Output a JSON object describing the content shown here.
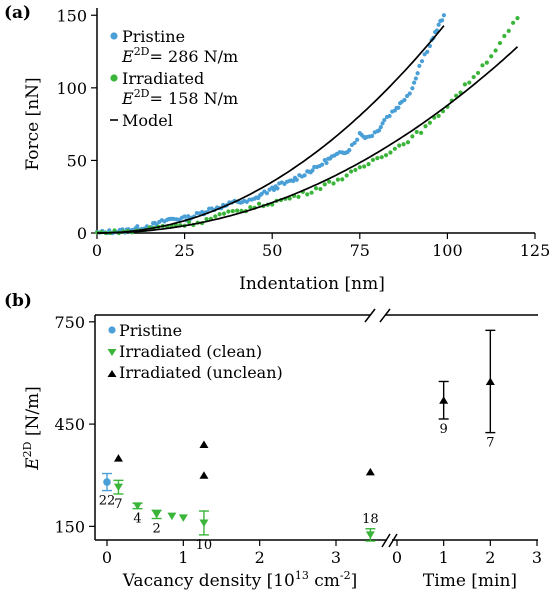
{
  "chart_data": [
    {
      "panel": "(a)",
      "type": "scatter",
      "xlabel": "Indentation [nm]",
      "ylabel": "Force [nN]",
      "xlim": [
        0,
        125
      ],
      "ylim": [
        0,
        155
      ],
      "xticks": [
        "0",
        "25",
        "50",
        "75",
        "100",
        "125"
      ],
      "yticks": [
        "0",
        "50",
        "100",
        "150"
      ],
      "legend_position": "top-left",
      "legend": {
        "pristine": "Pristine",
        "pristine_e": "E",
        "pristine_sup": "2D",
        "pristine_value": "= 286 N/m",
        "irradiated": "Irradiated",
        "irradiated_e": "E",
        "irradiated_sup": "2D",
        "irradiated_value": "= 158 N/m",
        "model": "Model"
      },
      "series": [
        {
          "name": "Pristine",
          "color": "#4a9fd6",
          "marker": "dot",
          "x": [
            0,
            3,
            5,
            8,
            10,
            12,
            15,
            17,
            20,
            22,
            25,
            27,
            30,
            32,
            35,
            37,
            40,
            42,
            45,
            47,
            50,
            52,
            55,
            57,
            60,
            62,
            65,
            67,
            70,
            72,
            75,
            77,
            80,
            82,
            85,
            87,
            90,
            92,
            95,
            97,
            99
          ],
          "y": [
            0,
            0.5,
            1,
            1.5,
            2.5,
            3.5,
            5,
            6,
            9,
            10,
            10,
            11,
            14,
            16,
            18,
            19,
            22,
            21,
            23,
            27,
            30,
            33,
            35,
            38,
            42,
            44,
            49,
            52,
            55,
            58,
            68,
            66,
            70,
            78,
            85,
            90,
            100,
            115,
            130,
            140,
            150
          ]
        },
        {
          "name": "Irradiated",
          "color": "#3ab53a",
          "marker": "dot",
          "x": [
            0,
            5,
            10,
            15,
            20,
            25,
            30,
            35,
            40,
            45,
            50,
            55,
            60,
            65,
            70,
            75,
            80,
            85,
            90,
            95,
            100,
            105,
            110,
            115,
            120
          ],
          "y": [
            0,
            0.5,
            1,
            3,
            5,
            6,
            8,
            12,
            15,
            18,
            21,
            24,
            28,
            33,
            38,
            44,
            52,
            58,
            66,
            75,
            88,
            101,
            115,
            130,
            148
          ]
        },
        {
          "name": "Model",
          "color": "#000000",
          "marker": "line",
          "k": [
            0.01158,
            0.00637
          ],
          "n": [
            2.05,
            2.07
          ],
          "xmax": [
            99,
            120
          ]
        }
      ]
    },
    {
      "panel": "(b)",
      "type": "scatter",
      "ylabel": "E",
      "ylabel_sup": "2D",
      "ylabel_unit": " [N/m]",
      "xlabel_left": "Vacancy density [10",
      "xlabel_left_sup1": "13",
      "xlabel_left_mid": " cm",
      "xlabel_left_sup2": "-2",
      "xlabel_left_end": "]",
      "xlabel_right": "Time [min]",
      "xlim_left": [
        -0.15,
        3.6
      ],
      "xlim_right": [
        -0.15,
        3.0
      ],
      "ylim": [
        110,
        770
      ],
      "xticks_left": [
        "0",
        "1",
        "2",
        "3"
      ],
      "xticks_right": [
        "0",
        "1",
        "2",
        "3"
      ],
      "yticks": [
        "150",
        "450",
        "750"
      ],
      "broken_axis": true,
      "legend_position": "top-left",
      "legend": {
        "pristine": "Pristine",
        "clean": "Irradiated (clean)",
        "unclean": "Irradiated (unclean)"
      },
      "series": [
        {
          "name": "Pristine",
          "color": "#4a9fd6",
          "marker": "dot",
          "points": [
            {
              "x": 0.0,
              "y": 280,
              "err": 25,
              "n": "22"
            }
          ]
        },
        {
          "name": "Irradiated (clean)",
          "color": "#3ab53a",
          "marker": "triangle-down",
          "points": [
            {
              "x": 0.15,
              "y": 265,
              "err": 20,
              "n": "7"
            },
            {
              "x": 0.4,
              "y": 210,
              "err": 8,
              "n": "4"
            },
            {
              "x": 0.65,
              "y": 185,
              "err": 12,
              "n": "2"
            },
            {
              "x": 0.85,
              "y": 180,
              "err": 0,
              "n": ""
            },
            {
              "x": 1.0,
              "y": 175,
              "err": 0,
              "n": ""
            },
            {
              "x": 1.27,
              "y": 160,
              "err": 35,
              "n": "10"
            },
            {
              "x": 3.45,
              "y": 125,
              "err": 18,
              "n": "18"
            }
          ]
        },
        {
          "name": "Irradiated (unclean)",
          "color": "#000000",
          "marker": "triangle-up",
          "points": [
            {
              "x": 0.15,
              "y": 350,
              "err": 0,
              "n": ""
            },
            {
              "x": 1.27,
              "y": 390,
              "err": 0,
              "n": ""
            },
            {
              "x": 1.27,
              "y": 300,
              "err": 0,
              "n": ""
            },
            {
              "x": 3.45,
              "y": 310,
              "err": 0,
              "n": ""
            }
          ]
        },
        {
          "name": "Irradiated (unclean) vs time",
          "color": "#000000",
          "marker": "triangle-up",
          "axis": "right",
          "points": [
            {
              "x": 1.0,
              "y": 520,
              "err": 55,
              "n": "9"
            },
            {
              "x": 2.0,
              "y": 575,
              "err": 150,
              "n": "7"
            }
          ]
        }
      ]
    }
  ]
}
